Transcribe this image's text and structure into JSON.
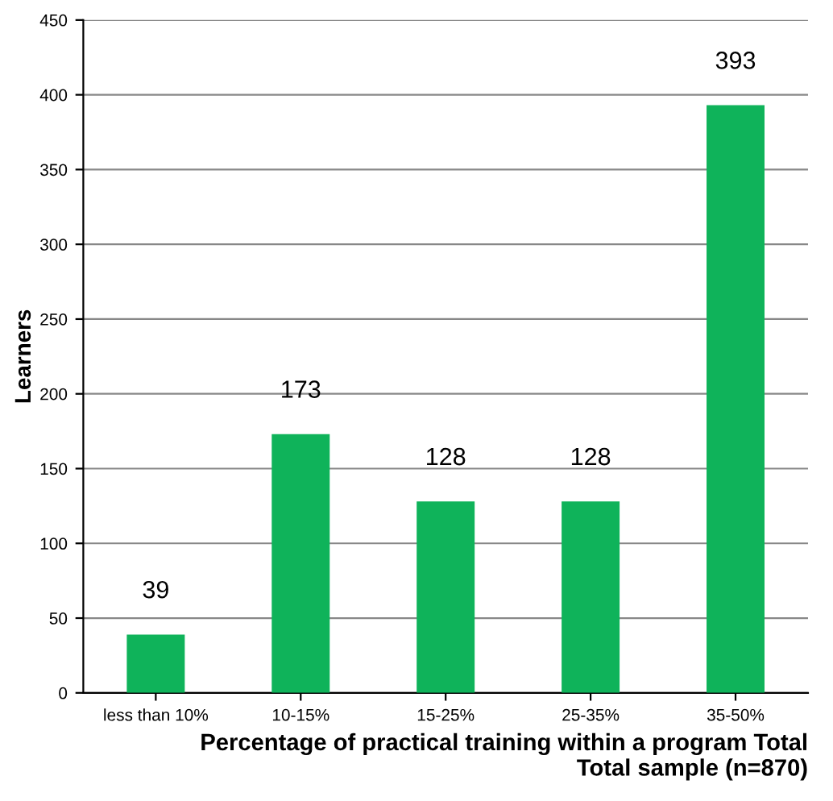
{
  "chart_data": {
    "type": "bar",
    "ylabel": "Learners",
    "xlabel": "Percentage of practical training within a program Total\nTotal sample (n=870)",
    "categories": [
      "less than 10%",
      "10-15%",
      "15-25%",
      "25-35%",
      "35-50%"
    ],
    "values": [
      39,
      173,
      128,
      128,
      393
    ],
    "color": "#0fb35a",
    "data_labels": true,
    "ylim": [
      0,
      450
    ],
    "yticks": [
      0,
      50,
      100,
      150,
      200,
      250,
      300,
      350,
      400,
      450
    ],
    "grid": "y",
    "legend": false
  }
}
